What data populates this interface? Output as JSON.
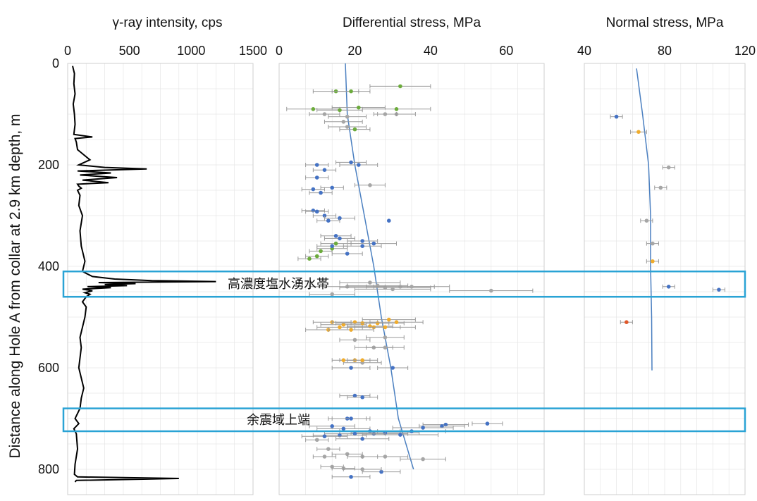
{
  "y_axis": {
    "label": "Distance along Hole A from collar at 2.9 km depth, m",
    "ticks": [
      "0",
      "200",
      "400",
      "600",
      "800"
    ],
    "range": [
      0,
      850
    ]
  },
  "chart_data": [
    {
      "type": "line",
      "title": "γ-ray intensity, cps",
      "x_ticks": [
        "0",
        "500",
        "1000",
        "1500"
      ],
      "xlim": [
        0,
        1500
      ],
      "series": [
        {
          "depth": [
            5,
            20,
            40,
            60,
            80,
            100,
            120,
            140,
            145,
            148,
            155,
            170,
            190,
            200,
            205,
            208,
            212,
            216,
            220,
            225,
            230,
            235,
            238,
            242,
            246,
            250,
            260,
            280,
            300,
            330,
            360,
            390,
            410,
            420,
            425,
            428,
            430,
            432,
            434,
            436,
            438,
            440,
            442,
            445,
            448,
            452,
            455,
            460,
            470,
            480,
            500,
            520,
            540,
            560,
            600,
            640,
            660,
            680,
            700,
            710,
            720,
            730,
            760,
            790,
            810,
            815,
            818,
            822,
            825
          ],
          "values": [
            40,
            55,
            50,
            60,
            45,
            55,
            60,
            50,
            200,
            60,
            70,
            80,
            180,
            90,
            300,
            640,
            80,
            350,
            100,
            400,
            120,
            330,
            80,
            90,
            110,
            80,
            100,
            90,
            120,
            100,
            110,
            140,
            120,
            200,
            380,
            680,
            1200,
            250,
            550,
            300,
            480,
            160,
            350,
            120,
            200,
            140,
            180,
            150,
            120,
            150,
            140,
            120,
            100,
            110,
            90,
            130,
            110,
            100,
            60,
            90,
            50,
            70,
            80,
            60,
            55,
            80,
            900,
            70,
            60
          ]
        }
      ]
    },
    {
      "type": "scatter",
      "title": "Differential stress, MPa",
      "x_ticks": [
        "0",
        "20",
        "40",
        "60"
      ],
      "xlim": [
        0,
        70
      ],
      "trend": {
        "x": [
          17.5,
          18,
          20,
          22.5,
          25,
          27,
          29.5,
          31.5,
          35.5
        ],
        "depth": [
          0,
          100,
          200,
          300,
          400,
          500,
          600,
          700,
          800
        ]
      },
      "series": [
        {
          "name": "green",
          "color": "#6cab3c",
          "points": [
            [
              32,
              45,
              8
            ],
            [
              15,
              55,
              6
            ],
            [
              19,
              55,
              5
            ],
            [
              31,
              90,
              9
            ],
            [
              9,
              90,
              7
            ],
            [
              16,
              92,
              6
            ],
            [
              21,
              87,
              7
            ],
            [
              20,
              130,
              4
            ],
            [
              11,
              370,
              3
            ],
            [
              10,
              380,
              3
            ],
            [
              8,
              385,
              3
            ],
            [
              15,
              355,
              4
            ],
            [
              14,
              365,
              4
            ]
          ]
        },
        {
          "name": "blue",
          "color": "#4472c4",
          "points": [
            [
              10,
              200,
              3
            ],
            [
              12,
              210,
              3
            ],
            [
              10,
              225,
              3
            ],
            [
              19,
              195,
              4
            ],
            [
              21,
              200,
              5
            ],
            [
              14,
              245,
              3
            ],
            [
              9,
              248,
              3
            ],
            [
              11,
              255,
              3
            ],
            [
              9,
              290,
              3
            ],
            [
              10,
              292,
              3
            ],
            [
              12,
              300,
              3
            ],
            [
              16,
              305,
              4
            ],
            [
              13,
              310,
              3
            ],
            [
              29,
              310,
              0
            ],
            [
              15,
              340,
              4
            ],
            [
              16,
              345,
              4
            ],
            [
              22,
              350,
              4
            ],
            [
              25,
              355,
              6
            ],
            [
              22,
              360,
              5
            ],
            [
              14,
              360,
              4
            ],
            [
              18,
              375,
              4
            ],
            [
              19,
              600,
              5
            ],
            [
              30,
              600,
              4
            ],
            [
              20,
              655,
              4
            ],
            [
              22,
              658,
              4
            ],
            [
              18,
              700,
              5
            ],
            [
              19,
              700,
              5
            ],
            [
              55,
              710,
              4
            ],
            [
              44,
              712,
              6
            ],
            [
              43,
              715,
              6
            ],
            [
              38,
              718,
              8
            ],
            [
              14,
              715,
              6
            ],
            [
              17,
              720,
              7
            ],
            [
              24,
              725,
              8
            ],
            [
              25,
              730,
              9
            ],
            [
              28,
              728,
              9
            ],
            [
              32,
              732,
              10
            ],
            [
              35,
              725,
              9
            ],
            [
              20,
              730,
              8
            ],
            [
              16,
              733,
              7
            ],
            [
              12,
              735,
              6
            ],
            [
              22,
              740,
              7
            ],
            [
              19,
              815,
              5
            ],
            [
              27,
              805,
              5
            ]
          ]
        },
        {
          "name": "gray",
          "color": "#a6a6a6",
          "points": [
            [
              31,
              100,
              5
            ],
            [
              28,
              100,
              3
            ],
            [
              12,
              100,
              4
            ],
            [
              18,
              105,
              5
            ],
            [
              17,
              115,
              5
            ],
            [
              18,
              125,
              5
            ],
            [
              24,
              240,
              4
            ],
            [
              14,
              455,
              6
            ],
            [
              18,
              440,
              10
            ],
            [
              24,
              432,
              8
            ],
            [
              26,
              438,
              8
            ],
            [
              28,
              442,
              12
            ],
            [
              30,
              445,
              10
            ],
            [
              32,
              440,
              9
            ],
            [
              35,
              440,
              10
            ],
            [
              56,
              448,
              11
            ],
            [
              20,
              545,
              4
            ],
            [
              28,
              540,
              5
            ],
            [
              25,
              560,
              5
            ],
            [
              28,
              560,
              5
            ],
            [
              22,
              590,
              5
            ],
            [
              10,
              742,
              3
            ],
            [
              13,
              760,
              3
            ],
            [
              18,
              770,
              4
            ],
            [
              12,
              775,
              3
            ],
            [
              22,
              775,
              4
            ],
            [
              28,
              775,
              6
            ],
            [
              38,
              780,
              6
            ],
            [
              14,
              795,
              3
            ],
            [
              17,
              798,
              3
            ],
            [
              22,
              800,
              5
            ]
          ]
        },
        {
          "name": "yellow",
          "color": "#f0ac2c",
          "points": [
            [
              14,
              510,
              5
            ],
            [
              17,
              515,
              6
            ],
            [
              20,
              510,
              6
            ],
            [
              22,
              512,
              7
            ],
            [
              24,
              518,
              6
            ],
            [
              25,
              520,
              7
            ],
            [
              26,
              512,
              7
            ],
            [
              28,
              520,
              8
            ],
            [
              29,
              505,
              7
            ],
            [
              31,
              510,
              7
            ],
            [
              16,
              520,
              6
            ],
            [
              13,
              525,
              6
            ],
            [
              19,
              525,
              6
            ],
            [
              20,
              585,
              4
            ],
            [
              22,
              585,
              4
            ],
            [
              17,
              585,
              3
            ]
          ]
        }
      ]
    },
    {
      "type": "scatter",
      "title": "Normal stress, MPa",
      "x_ticks": [
        "40",
        "80",
        "120"
      ],
      "xlim": [
        40,
        120
      ],
      "trend": {
        "x": [
          66,
          69,
          72,
          73,
          73,
          73.5,
          73.7
        ],
        "depth": [
          10,
          100,
          200,
          300,
          400,
          500,
          605
        ]
      },
      "series": [
        {
          "name": "blue",
          "color": "#4472c4",
          "points": [
            [
              56,
              105,
              3
            ],
            [
              82,
              440,
              3
            ],
            [
              107,
              446,
              3
            ]
          ]
        },
        {
          "name": "orange",
          "color": "#f0ac2c",
          "points": [
            [
              67,
              135,
              4
            ],
            [
              74,
              390,
              3
            ]
          ]
        },
        {
          "name": "red",
          "color": "#e0582a",
          "points": [
            [
              61,
              510,
              3
            ]
          ]
        },
        {
          "name": "gray",
          "color": "#a6a6a6",
          "points": [
            [
              82,
              205,
              3
            ],
            [
              78,
              245,
              3
            ],
            [
              71,
              310,
              3
            ],
            [
              74,
              355,
              3
            ]
          ]
        }
      ]
    }
  ],
  "zones": [
    {
      "label": "高濃度塩水湧水帯",
      "depth": [
        410,
        460
      ]
    },
    {
      "label": "余震域上端",
      "depth": [
        680,
        725
      ]
    }
  ],
  "colors": {
    "zone_border": "#2aa3d5",
    "trend": "#4a7fc0",
    "gamma_line": "#000000"
  }
}
